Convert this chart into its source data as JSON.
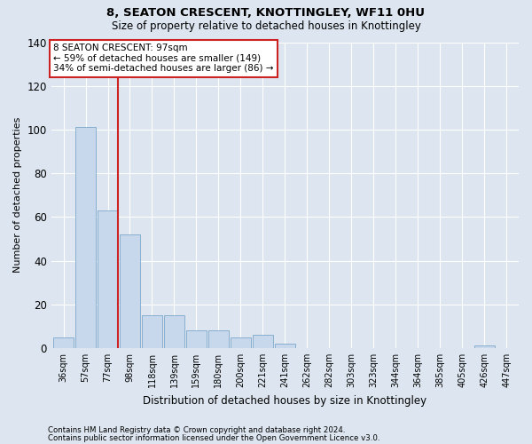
{
  "title": "8, SEATON CRESCENT, KNOTTINGLEY, WF11 0HU",
  "subtitle": "Size of property relative to detached houses in Knottingley",
  "xlabel": "Distribution of detached houses by size in Knottingley",
  "ylabel": "Number of detached properties",
  "footer_line1": "Contains HM Land Registry data © Crown copyright and database right 2024.",
  "footer_line2": "Contains public sector information licensed under the Open Government Licence v3.0.",
  "bar_labels": [
    "36sqm",
    "57sqm",
    "77sqm",
    "98sqm",
    "118sqm",
    "139sqm",
    "159sqm",
    "180sqm",
    "200sqm",
    "221sqm",
    "241sqm",
    "262sqm",
    "282sqm",
    "303sqm",
    "323sqm",
    "344sqm",
    "364sqm",
    "385sqm",
    "405sqm",
    "426sqm",
    "447sqm"
  ],
  "bar_values": [
    5,
    101,
    63,
    52,
    15,
    15,
    8,
    8,
    5,
    6,
    2,
    0,
    0,
    0,
    0,
    0,
    0,
    0,
    0,
    1,
    0
  ],
  "bar_color": "#c8d8ec",
  "bar_edge_color": "#7ba8c8",
  "annotation_text_line1": "8 SEATON CRESCENT: 97sqm",
  "annotation_text_line2": "← 59% of detached houses are smaller (149)",
  "annotation_text_line3": "34% of semi-detached houses are larger (86) →",
  "annotation_box_facecolor": "#ffffff",
  "annotation_box_edgecolor": "#cc2222",
  "property_line_color": "#cc2222",
  "ylim": [
    0,
    140
  ],
  "yticks": [
    0,
    20,
    40,
    60,
    80,
    100,
    120,
    140
  ],
  "background_color": "#dde6f0",
  "grid_color": "#ffffff",
  "title_fontsize": 9.5,
  "subtitle_fontsize": 8.5
}
